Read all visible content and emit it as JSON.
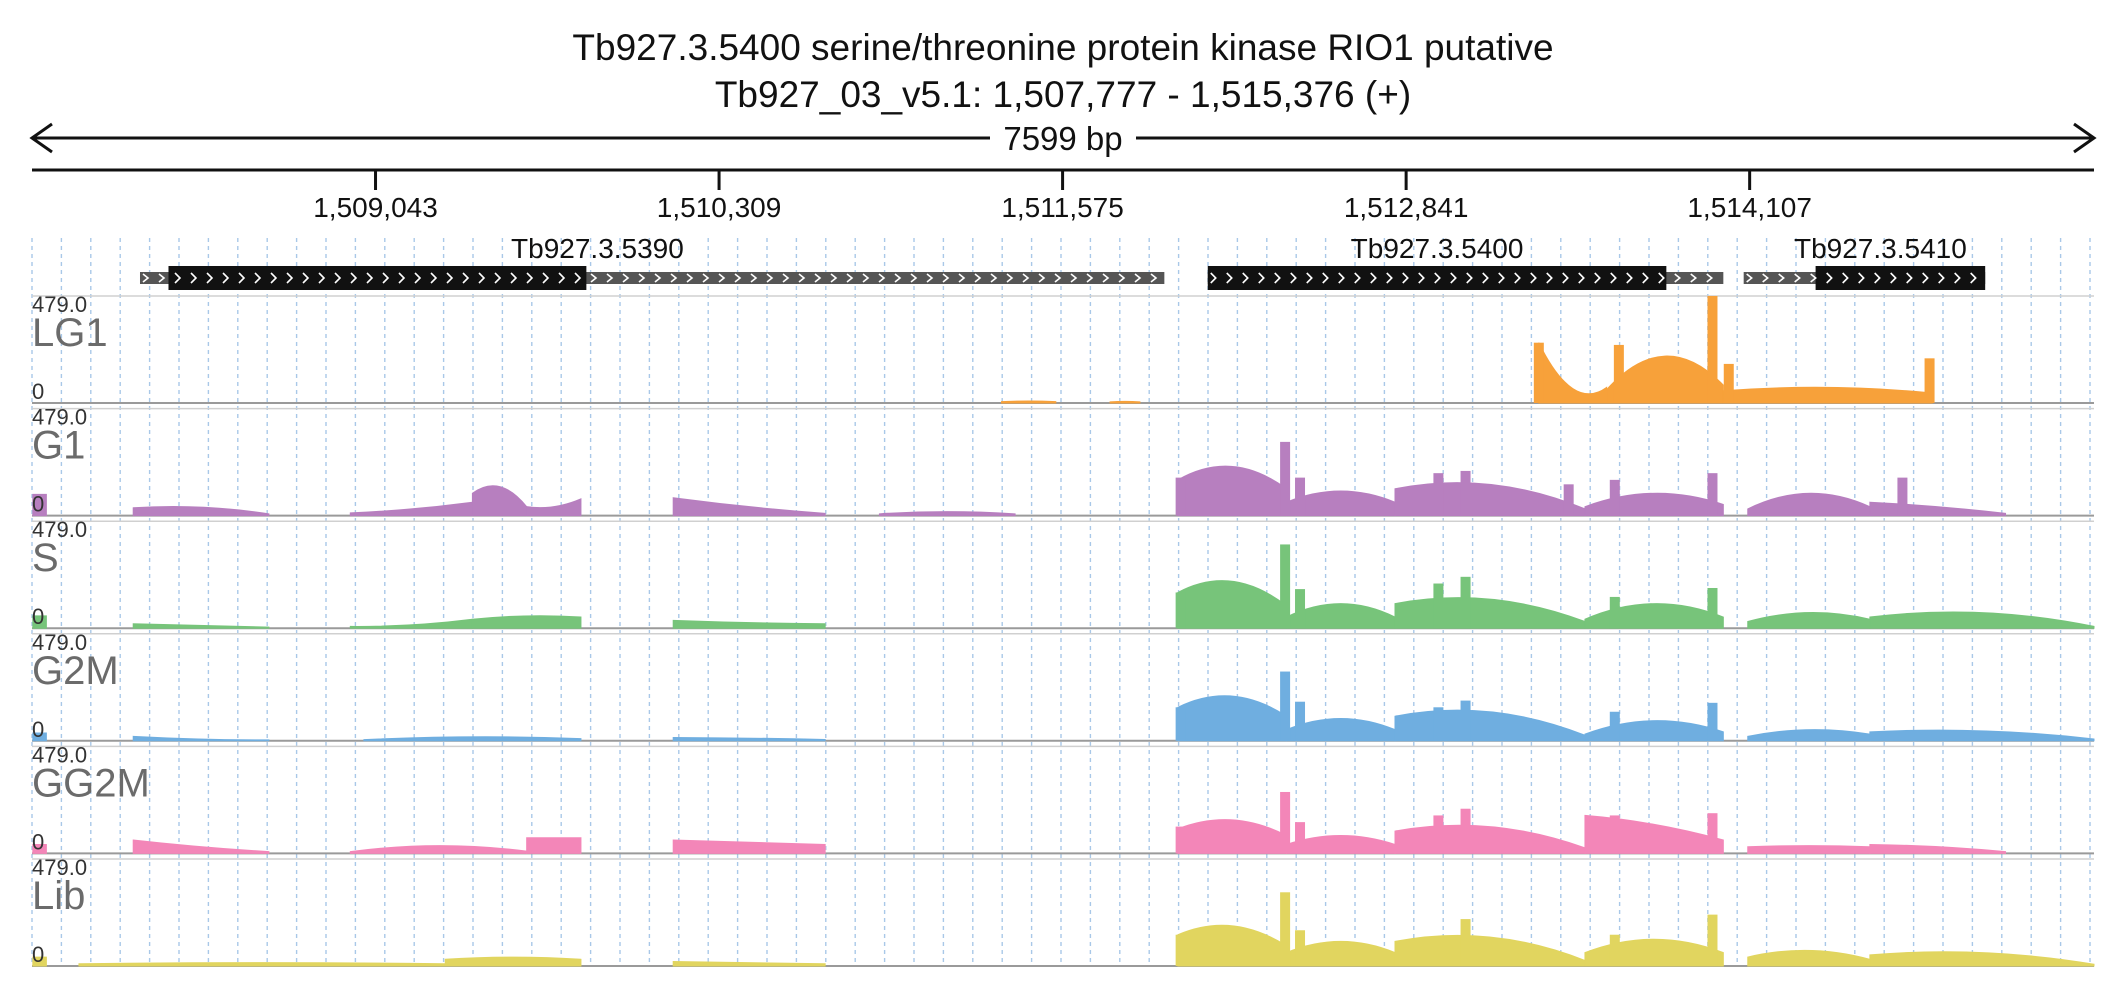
{
  "header": {
    "title": "Tb927.3.5400  serine/threonine protein kinase RIO1  putative",
    "location": "Tb927_03_v5.1: 1,507,777 - 1,515,376 (+)",
    "span_label": "7599 bp"
  },
  "chart_data": {
    "type": "area",
    "region": {
      "chrom": "Tb927_03_v5.1",
      "start": 1507777,
      "end": 1515376,
      "strand": "+"
    },
    "x_ticks": [
      {
        "value": 1509043,
        "label": "1,509,043"
      },
      {
        "value": 1510309,
        "label": "1,510,309"
      },
      {
        "value": 1511575,
        "label": "1,511,575"
      },
      {
        "value": 1512841,
        "label": "1,512,841"
      },
      {
        "value": 1514107,
        "label": "1,514,107"
      }
    ],
    "genes": [
      {
        "name": "Tb927.3.5390",
        "start": 1508175,
        "end": 1511950,
        "cds_start": 1508280,
        "cds_end": 1509820
      },
      {
        "name": "Tb927.3.5400",
        "start": 1512110,
        "end": 1514010,
        "cds_start": 1512110,
        "cds_end": 1513800
      },
      {
        "name": "Tb927.3.5410",
        "start": 1514085,
        "end": 1514975,
        "cds_start": 1514350,
        "cds_end": 1514975
      }
    ],
    "track_max": "479.0",
    "track_min": "0",
    "ylim": [
      0,
      479
    ],
    "tracks": [
      {
        "name": "LG1",
        "color": "#f7a13a",
        "segments": [
          {
            "x0": 1511350,
            "x1": 1511550,
            "y0": 6,
            "ypeak": 9,
            "y1": 6
          },
          {
            "x0": 1511750,
            "x1": 1511860,
            "y0": 5,
            "ypeak": 7,
            "y1": 5
          },
          {
            "x0": 1513330,
            "x1": 1513580,
            "y0": 270,
            "ypeak": 65,
            "y1": 70
          },
          {
            "x0": 1513580,
            "x1": 1514010,
            "y0": 60,
            "ypeak": 210,
            "y1": 80
          },
          {
            "x0": 1514010,
            "x1": 1514780,
            "y0": 55,
            "ypeak": 70,
            "y1": 45
          }
        ],
        "spikes": [
          {
            "x": 1513330,
            "y": 270
          },
          {
            "x": 1513625,
            "y": 260
          },
          {
            "x": 1513970,
            "y": 479
          },
          {
            "x": 1514030,
            "y": 175
          },
          {
            "x": 1514770,
            "y": 200
          }
        ]
      },
      {
        "name": "G1",
        "color": "#b77fbf",
        "segments": [
          {
            "x0": 1507780,
            "x1": 1507830,
            "y0": 95,
            "ypeak": 95,
            "y1": 95
          },
          {
            "x0": 1508150,
            "x1": 1508650,
            "y0": 35,
            "ypeak": 38,
            "y1": 8
          },
          {
            "x0": 1508950,
            "x1": 1509400,
            "y0": 12,
            "ypeak": 30,
            "y1": 60
          },
          {
            "x0": 1509400,
            "x1": 1509600,
            "y0": 100,
            "ypeak": 130,
            "y1": 40
          },
          {
            "x0": 1509600,
            "x1": 1509800,
            "y0": 40,
            "ypeak": 40,
            "y1": 75
          },
          {
            "x0": 1510140,
            "x1": 1510700,
            "y0": 80,
            "ypeak": 40,
            "y1": 10
          },
          {
            "x0": 1510900,
            "x1": 1511400,
            "y0": 8,
            "ypeak": 18,
            "y1": 8
          },
          {
            "x0": 1512000,
            "x1": 1512400,
            "y0": 160,
            "ypeak": 220,
            "y1": 120
          },
          {
            "x0": 1512400,
            "x1": 1512800,
            "y0": 60,
            "ypeak": 110,
            "y1": 60
          },
          {
            "x0": 1512800,
            "x1": 1513500,
            "y0": 120,
            "ypeak": 140,
            "y1": 30
          },
          {
            "x0": 1513500,
            "x1": 1514010,
            "y0": 40,
            "ypeak": 100,
            "y1": 50
          },
          {
            "x0": 1514100,
            "x1": 1514550,
            "y0": 30,
            "ypeak": 100,
            "y1": 40
          },
          {
            "x0": 1514550,
            "x1": 1515050,
            "y0": 60,
            "ypeak": 40,
            "y1": 10
          }
        ],
        "spikes": [
          {
            "x": 1512010,
            "y": 170
          },
          {
            "x": 1512395,
            "y": 330
          },
          {
            "x": 1512450,
            "y": 170
          },
          {
            "x": 1512960,
            "y": 190
          },
          {
            "x": 1513060,
            "y": 200
          },
          {
            "x": 1513440,
            "y": 140
          },
          {
            "x": 1513610,
            "y": 160
          },
          {
            "x": 1513970,
            "y": 190
          },
          {
            "x": 1514670,
            "y": 170
          }
        ]
      },
      {
        "name": "S",
        "color": "#77c47a",
        "segments": [
          {
            "x0": 1507780,
            "x1": 1507830,
            "y0": 55,
            "ypeak": 55,
            "y1": 55
          },
          {
            "x0": 1508150,
            "x1": 1508650,
            "y0": 20,
            "ypeak": 12,
            "y1": 5
          },
          {
            "x0": 1508950,
            "x1": 1509400,
            "y0": 8,
            "ypeak": 15,
            "y1": 40
          },
          {
            "x0": 1509400,
            "x1": 1509800,
            "y0": 40,
            "ypeak": 55,
            "y1": 50
          },
          {
            "x0": 1510140,
            "x1": 1510700,
            "y0": 35,
            "ypeak": 25,
            "y1": 20
          },
          {
            "x0": 1512000,
            "x1": 1512400,
            "y0": 160,
            "ypeak": 210,
            "y1": 100
          },
          {
            "x0": 1512400,
            "x1": 1512800,
            "y0": 50,
            "ypeak": 110,
            "y1": 50
          },
          {
            "x0": 1512800,
            "x1": 1513500,
            "y0": 110,
            "ypeak": 130,
            "y1": 30
          },
          {
            "x0": 1513500,
            "x1": 1514010,
            "y0": 40,
            "ypeak": 110,
            "y1": 50
          },
          {
            "x0": 1514100,
            "x1": 1514550,
            "y0": 30,
            "ypeak": 70,
            "y1": 40
          },
          {
            "x0": 1514550,
            "x1": 1515376,
            "y0": 50,
            "ypeak": 70,
            "y1": 8
          }
        ],
        "spikes": [
          {
            "x": 1512010,
            "y": 160
          },
          {
            "x": 1512395,
            "y": 375
          },
          {
            "x": 1512450,
            "y": 175
          },
          {
            "x": 1512960,
            "y": 200
          },
          {
            "x": 1513060,
            "y": 230
          },
          {
            "x": 1513610,
            "y": 140
          },
          {
            "x": 1513970,
            "y": 180
          }
        ]
      },
      {
        "name": "G2M",
        "color": "#6faee0",
        "segments": [
          {
            "x0": 1507780,
            "x1": 1507830,
            "y0": 35,
            "ypeak": 35,
            "y1": 35
          },
          {
            "x0": 1508150,
            "x1": 1508650,
            "y0": 20,
            "ypeak": 8,
            "y1": 4
          },
          {
            "x0": 1509000,
            "x1": 1509800,
            "y0": 5,
            "ypeak": 18,
            "y1": 10
          },
          {
            "x0": 1510140,
            "x1": 1510700,
            "y0": 15,
            "ypeak": 12,
            "y1": 6
          },
          {
            "x0": 1512000,
            "x1": 1512400,
            "y0": 150,
            "ypeak": 200,
            "y1": 110
          },
          {
            "x0": 1512400,
            "x1": 1512800,
            "y0": 50,
            "ypeak": 100,
            "y1": 50
          },
          {
            "x0": 1512800,
            "x1": 1513500,
            "y0": 110,
            "ypeak": 130,
            "y1": 25
          },
          {
            "x0": 1513500,
            "x1": 1514010,
            "y0": 30,
            "ypeak": 90,
            "y1": 40
          },
          {
            "x0": 1514100,
            "x1": 1514550,
            "y0": 20,
            "ypeak": 50,
            "y1": 30
          },
          {
            "x0": 1514550,
            "x1": 1515376,
            "y0": 40,
            "ypeak": 45,
            "y1": 8
          }
        ],
        "spikes": [
          {
            "x": 1512010,
            "y": 150
          },
          {
            "x": 1512395,
            "y": 310
          },
          {
            "x": 1512450,
            "y": 175
          },
          {
            "x": 1512960,
            "y": 150
          },
          {
            "x": 1513060,
            "y": 180
          },
          {
            "x": 1513610,
            "y": 130
          },
          {
            "x": 1513970,
            "y": 170
          }
        ]
      },
      {
        "name": "GG2M",
        "color": "#f386b8",
        "segments": [
          {
            "x0": 1507780,
            "x1": 1507830,
            "y0": 40,
            "ypeak": 40,
            "y1": 40
          },
          {
            "x0": 1508150,
            "x1": 1508650,
            "y0": 60,
            "ypeak": 30,
            "y1": 8
          },
          {
            "x0": 1508950,
            "x1": 1509600,
            "y0": 8,
            "ypeak": 35,
            "y1": 10
          },
          {
            "x0": 1509600,
            "x1": 1509800,
            "y0": 70,
            "ypeak": 70,
            "y1": 70
          },
          {
            "x0": 1510140,
            "x1": 1510700,
            "y0": 60,
            "ypeak": 50,
            "y1": 40
          },
          {
            "x0": 1512000,
            "x1": 1512400,
            "y0": 110,
            "ypeak": 150,
            "y1": 80
          },
          {
            "x0": 1512400,
            "x1": 1512800,
            "y0": 40,
            "ypeak": 80,
            "y1": 40
          },
          {
            "x0": 1512800,
            "x1": 1513500,
            "y0": 100,
            "ypeak": 120,
            "y1": 25
          },
          {
            "x0": 1513500,
            "x1": 1514010,
            "y0": 170,
            "ypeak": 130,
            "y1": 60
          },
          {
            "x0": 1514100,
            "x1": 1514550,
            "y0": 30,
            "ypeak": 35,
            "y1": 30
          },
          {
            "x0": 1514550,
            "x1": 1515050,
            "y0": 40,
            "ypeak": 30,
            "y1": 8
          }
        ],
        "spikes": [
          {
            "x": 1512010,
            "y": 120
          },
          {
            "x": 1512395,
            "y": 275
          },
          {
            "x": 1512450,
            "y": 140
          },
          {
            "x": 1512960,
            "y": 170
          },
          {
            "x": 1513060,
            "y": 200
          },
          {
            "x": 1513610,
            "y": 170
          },
          {
            "x": 1513970,
            "y": 180
          }
        ]
      },
      {
        "name": "Lib",
        "color": "#e1d55f",
        "segments": [
          {
            "x0": 1507780,
            "x1": 1507830,
            "y0": 40,
            "ypeak": 40,
            "y1": 40
          },
          {
            "x0": 1507950,
            "x1": 1509300,
            "y0": 10,
            "ypeak": 15,
            "y1": 10
          },
          {
            "x0": 1509300,
            "x1": 1509800,
            "y0": 30,
            "ypeak": 40,
            "y1": 30
          },
          {
            "x0": 1510140,
            "x1": 1510700,
            "y0": 20,
            "ypeak": 15,
            "y1": 10
          },
          {
            "x0": 1512000,
            "x1": 1512400,
            "y0": 140,
            "ypeak": 180,
            "y1": 90
          },
          {
            "x0": 1512400,
            "x1": 1512800,
            "y0": 60,
            "ypeak": 110,
            "y1": 60
          },
          {
            "x0": 1512800,
            "x1": 1513500,
            "y0": 110,
            "ypeak": 130,
            "y1": 25
          },
          {
            "x0": 1513500,
            "x1": 1514010,
            "y0": 60,
            "ypeak": 120,
            "y1": 60
          },
          {
            "x0": 1514100,
            "x1": 1514550,
            "y0": 40,
            "ypeak": 70,
            "y1": 30
          },
          {
            "x0": 1514550,
            "x1": 1515376,
            "y0": 50,
            "ypeak": 60,
            "y1": 8
          }
        ],
        "spikes": [
          {
            "x": 1512010,
            "y": 140
          },
          {
            "x": 1512395,
            "y": 330
          },
          {
            "x": 1512450,
            "y": 160
          },
          {
            "x": 1513060,
            "y": 210
          },
          {
            "x": 1513610,
            "y": 140
          },
          {
            "x": 1513970,
            "y": 230
          }
        ]
      }
    ],
    "grid": true,
    "legend": "none"
  }
}
